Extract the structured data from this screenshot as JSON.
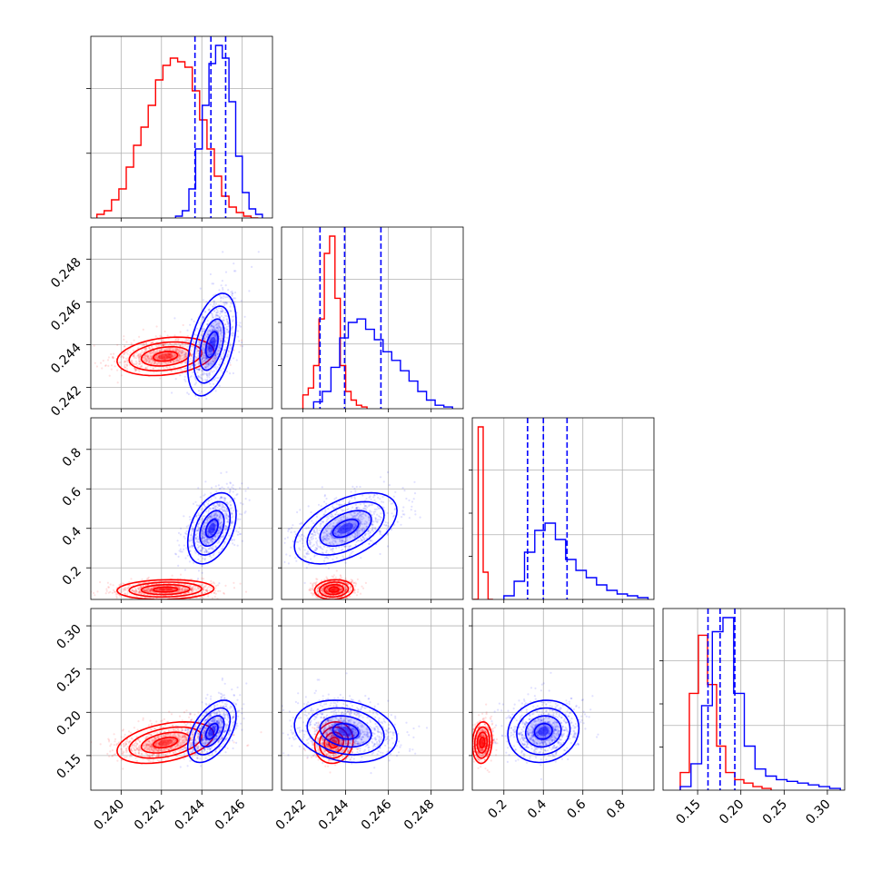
{
  "chart_data": {
    "type": "corner",
    "title": "",
    "n_params": 4,
    "params": [
      {
        "label": "",
        "range": [
          0.2385,
          0.2475
        ],
        "ticks": [
          0.24,
          0.242,
          0.244,
          0.246
        ],
        "tick_labels": [
          "0.240",
          "0.242",
          "0.244",
          "0.246"
        ],
        "scale": "linear"
      },
      {
        "label": "",
        "range": [
          0.241,
          0.2495
        ],
        "ticks": [
          0.242,
          0.244,
          0.246,
          0.248
        ],
        "tick_labels": [
          "0.242",
          "0.244",
          "0.246",
          "0.248"
        ],
        "scale": "linear"
      },
      {
        "label": "",
        "range": [
          0.04,
          0.96
        ],
        "ticks": [
          0.2,
          0.4,
          0.6,
          0.8
        ],
        "tick_labels": [
          "0.2",
          "0.4",
          "0.6",
          "0.8"
        ],
        "scale": "linear"
      },
      {
        "label": "",
        "range": [
          0.11,
          0.32
        ],
        "ticks": [
          0.15,
          0.2,
          0.25,
          0.3
        ],
        "tick_labels": [
          "0.15",
          "0.20",
          "0.25",
          "0.30"
        ],
        "scale": "linear"
      }
    ],
    "grid": true,
    "series": [
      {
        "color": "#ff0000",
        "mean": [
          0.2422,
          0.24345,
          0.09,
          0.165
        ],
        "std": [
          0.0012,
          0.00045,
          0.025,
          0.012
        ],
        "corr": [
          [
            1,
            0.25,
            0.1,
            0.4
          ],
          [
            0.25,
            1,
            0.1,
            0.1
          ],
          [
            0.1,
            0.1,
            1,
            0.1
          ],
          [
            0.4,
            0.1,
            0.1,
            1
          ]
        ],
        "hist": [
          [
            0.02,
            0.04,
            0.1,
            0.16,
            0.28,
            0.4,
            0.5,
            0.62,
            0.76,
            0.84,
            0.88,
            0.86,
            0.83,
            0.7,
            0.54,
            0.38,
            0.23,
            0.12,
            0.06,
            0.03,
            0.01,
            0.0
          ],
          [
            0.08,
            0.12,
            0.25,
            0.52,
            0.9,
            1.0,
            0.64,
            0.25,
            0.1,
            0.05,
            0.02,
            0.01
          ],
          [
            0.0,
            0.95,
            0.15,
            0.0
          ],
          [
            0.1,
            0.55,
            0.88,
            0.6,
            0.25,
            0.1,
            0.06,
            0.04,
            0.02,
            0.01
          ]
        ],
        "hist_ranges": [
          [
            0.2388,
            0.2468
          ],
          [
            0.242,
            0.245
          ],
          [
            0.045,
            0.145
          ],
          [
            0.13,
            0.235
          ]
        ]
      },
      {
        "color": "#0000ff",
        "mean": [
          0.2445,
          0.244,
          0.4,
          0.178
        ],
        "std": [
          0.0006,
          0.0012,
          0.09,
          0.018
        ],
        "corr": [
          [
            1,
            0.45,
            0.4,
            0.5
          ],
          [
            0.45,
            1,
            0.5,
            -0.2
          ],
          [
            0.4,
            0.5,
            1,
            0.1
          ],
          [
            0.5,
            -0.2,
            0.1,
            1
          ]
        ],
        "hist": [
          [
            0.01,
            0.04,
            0.16,
            0.38,
            0.62,
            0.85,
            0.95,
            0.88,
            0.64,
            0.34,
            0.14,
            0.05,
            0.02
          ],
          [
            0.04,
            0.1,
            0.24,
            0.41,
            0.5,
            0.52,
            0.46,
            0.4,
            0.33,
            0.28,
            0.22,
            0.16,
            0.1,
            0.05,
            0.02,
            0.01
          ],
          [
            0.02,
            0.1,
            0.26,
            0.38,
            0.42,
            0.33,
            0.22,
            0.16,
            0.12,
            0.08,
            0.05,
            0.03,
            0.02,
            0.01
          ],
          [
            0.02,
            0.15,
            0.48,
            0.9,
            0.98,
            0.55,
            0.25,
            0.12,
            0.08,
            0.06,
            0.05,
            0.04,
            0.03,
            0.02,
            0.01
          ]
        ],
        "hist_ranges": [
          [
            0.2427,
            0.247
          ],
          [
            0.2425,
            0.249
          ],
          [
            0.2,
            0.93
          ],
          [
            0.13,
            0.315
          ]
        ]
      }
    ],
    "quantile_lines": {
      "color": "#0000ff",
      "values": [
        [
          0.24366,
          0.24445,
          0.24518
        ],
        [
          0.2428,
          0.24395,
          0.24565
        ],
        [
          0.32,
          0.4,
          0.52
        ],
        [
          0.162,
          0.176,
          0.193
        ]
      ]
    }
  }
}
